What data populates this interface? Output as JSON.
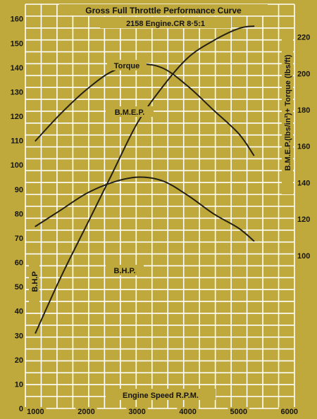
{
  "colors": {
    "background": "#bfa93c",
    "grid": "#ffffff",
    "curve": "#242014",
    "text": "#141414"
  },
  "chart_data": {
    "type": "line",
    "title": "Gross Full Throttle Performance Curve",
    "subtitle": "2158 Engine.CR 8·5:1",
    "xlabel": "Engine Speed R.P.M.",
    "ylabel_left": "B.H.P",
    "ylabel_right": "B.M.E.P.(lbs/in²)+ Torque (lbs/ft)",
    "grid": true,
    "x_ticks": [
      1000,
      2000,
      3000,
      4000,
      5000,
      6000
    ],
    "y_left_ticks": [
      0,
      10,
      20,
      30,
      40,
      50,
      60,
      70,
      80,
      90,
      100,
      110,
      120,
      130,
      140,
      150,
      160
    ],
    "y_right_ticks": [
      100,
      120,
      140,
      160,
      180,
      200,
      220
    ],
    "xlim": [
      800,
      6100
    ],
    "ylim_left": [
      0,
      166
    ],
    "ylim_right": [
      16,
      238
    ],
    "series": [
      {
        "name": "Torque",
        "axis": "right",
        "x": [
          1000,
          1500,
          2000,
          2500,
          3000,
          3500,
          4000,
          4500,
          5000,
          5300
        ],
        "values": [
          163,
          178,
          191,
          201,
          205,
          203,
          193,
          180,
          167,
          155
        ]
      },
      {
        "name": "B.M.E.P.",
        "axis": "right",
        "x": [
          1000,
          1500,
          2000,
          2500,
          3000,
          3500,
          4000,
          4500,
          5000,
          5300
        ],
        "values": [
          116,
          125,
          134,
          140,
          143,
          141,
          133,
          123,
          115,
          108
        ]
      },
      {
        "name": "B.H.P.",
        "axis": "left",
        "x": [
          1000,
          1500,
          2000,
          2500,
          3000,
          3500,
          4000,
          4500,
          5000,
          5300
        ],
        "values": [
          31,
          54,
          75,
          96,
          117,
          132,
          144,
          151,
          156,
          157
        ]
      }
    ]
  }
}
